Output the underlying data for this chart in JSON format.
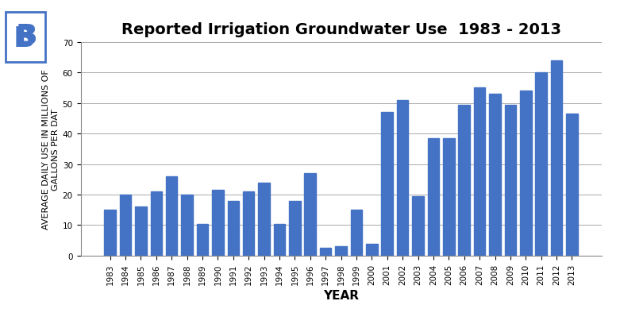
{
  "title": "Reported Irrigation Groundwater Use  1983 - 2013",
  "xlabel": "YEAR",
  "ylabel": "AVERAGE DAILY USE IN MILLIONS OF\nGALLONS PER DAT",
  "years": [
    1983,
    1984,
    1985,
    1986,
    1987,
    1988,
    1989,
    1990,
    1991,
    1992,
    1993,
    1994,
    1995,
    1996,
    1997,
    1998,
    1999,
    2000,
    2001,
    2002,
    2003,
    2004,
    2005,
    2006,
    2007,
    2008,
    2009,
    2010,
    2011,
    2012,
    2013
  ],
  "values": [
    15,
    20,
    16,
    21,
    26,
    20,
    10.5,
    21.5,
    18,
    21,
    24,
    10.5,
    18,
    27,
    2.5,
    3,
    15,
    4,
    47,
    51,
    19.5,
    38.5,
    38.5,
    49.5,
    55,
    53,
    49.5,
    54,
    60,
    64,
    46.5
  ],
  "bar_color": "#4472c4",
  "ylim": [
    0,
    70
  ],
  "yticks": [
    0,
    10,
    20,
    30,
    40,
    50,
    60,
    70
  ],
  "background_color": "#ffffff",
  "grid_color": "#aaaaaa",
  "title_fontsize": 14,
  "axis_label_fontsize": 8,
  "tick_fontsize": 7.5,
  "xlabel_fontsize": 11,
  "logo_color": "#4472c4"
}
